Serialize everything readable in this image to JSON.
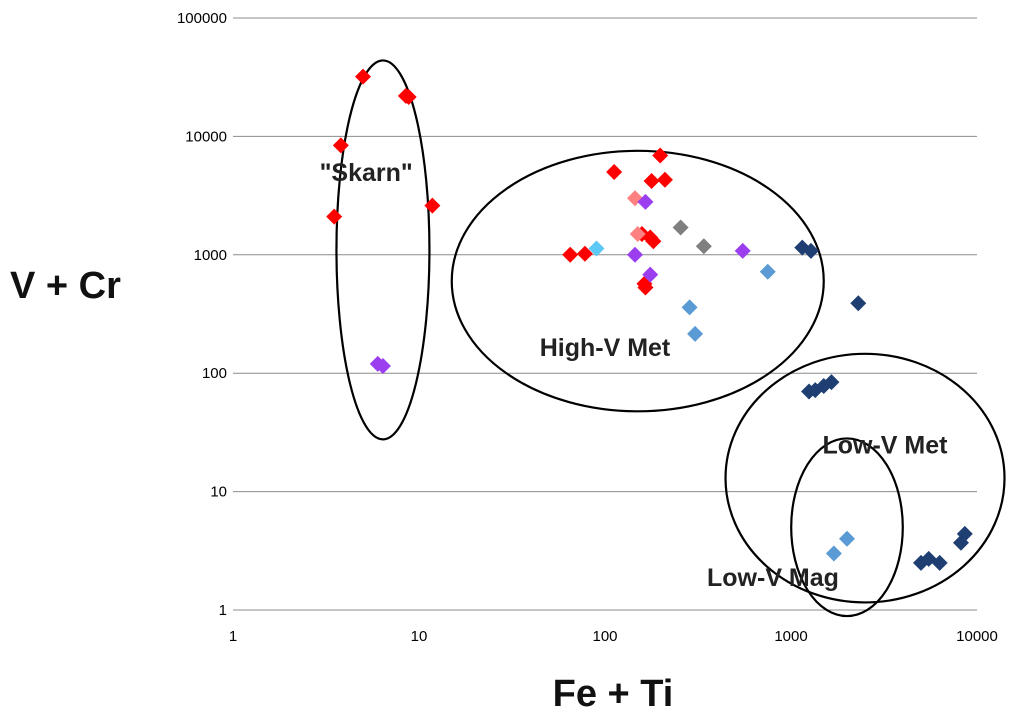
{
  "chart_data": {
    "type": "scatter",
    "xscale": "log",
    "yscale": "log",
    "xlabel": "Fe + Ti",
    "ylabel": "V + Cr",
    "xlim": [
      1,
      10000
    ],
    "ylim": [
      1,
      100000
    ],
    "x_ticks": [
      "1",
      "10",
      "100",
      "1000",
      "10000"
    ],
    "y_ticks": [
      "1",
      "10",
      "100",
      "1000",
      "10000",
      "100000"
    ],
    "grid": "horizontal",
    "colors": {
      "red": "#ff0000",
      "pink": "#ff8080",
      "purple": "#9b3ef0",
      "gray": "#7f7f7f",
      "cyan": "#5bc8f5",
      "lightblue": "#5b9bd5",
      "navy": "#1f3f73"
    },
    "series": [
      {
        "name": "red",
        "color": "#ff0000",
        "points": [
          [
            3.5,
            2100
          ],
          [
            3.8,
            8400
          ],
          [
            5,
            32000
          ],
          [
            8.5,
            22000
          ],
          [
            8.8,
            21500
          ],
          [
            11.8,
            2600
          ],
          [
            65,
            1000
          ],
          [
            78,
            1020
          ],
          [
            112,
            5000
          ],
          [
            158,
            1500
          ],
          [
            163,
            570
          ],
          [
            165,
            530
          ],
          [
            175,
            1400
          ],
          [
            178,
            4200
          ],
          [
            182,
            1300
          ],
          [
            198,
            6900
          ],
          [
            210,
            4300
          ]
        ]
      },
      {
        "name": "pink",
        "color": "#ff8080",
        "points": [
          [
            145,
            3000
          ],
          [
            150,
            1500
          ]
        ]
      },
      {
        "name": "purple",
        "color": "#9b3ef0",
        "points": [
          [
            6,
            120
          ],
          [
            6.4,
            115
          ],
          [
            145,
            1000
          ],
          [
            165,
            2800
          ],
          [
            175,
            680
          ],
          [
            550,
            1080
          ]
        ]
      },
      {
        "name": "gray",
        "color": "#7f7f7f",
        "points": [
          [
            255,
            1700
          ],
          [
            340,
            1180
          ]
        ]
      },
      {
        "name": "cyan",
        "color": "#5bc8f5",
        "points": [
          [
            90,
            1130
          ]
        ]
      },
      {
        "name": "lightblue",
        "color": "#5b9bd5",
        "points": [
          [
            285,
            360
          ],
          [
            305,
            215
          ],
          [
            750,
            720
          ],
          [
            1700,
            3
          ],
          [
            2000,
            4
          ]
        ]
      },
      {
        "name": "navy",
        "color": "#1f3f73",
        "points": [
          [
            1150,
            1150
          ],
          [
            1280,
            1080
          ],
          [
            1250,
            70
          ],
          [
            1350,
            72
          ],
          [
            1500,
            78
          ],
          [
            1650,
            84
          ],
          [
            2300,
            390
          ],
          [
            5000,
            2.5
          ],
          [
            5500,
            2.7
          ],
          [
            6300,
            2.5
          ],
          [
            8200,
            3.7
          ],
          [
            8600,
            4.4
          ]
        ]
      }
    ],
    "annotations": [
      {
        "text": "\"Skarn\"",
        "x": 5.2,
        "y": 4200
      },
      {
        "text": "High-V Met",
        "x": 100,
        "y": 140
      },
      {
        "text": "Low-V Met",
        "x": 3200,
        "y": 21
      },
      {
        "text": "Low-V Mag",
        "x": 800,
        "y": 1.6
      }
    ],
    "ellipses": [
      {
        "label": "\"Skarn\"",
        "cx": 6.4,
        "cy": 1100,
        "rx_dex": 0.25,
        "ry_dex": 1.6
      },
      {
        "label": "High-V Met",
        "cx": 150,
        "cy": 600,
        "rx_dex": 1.0,
        "ry_dex": 1.1
      },
      {
        "label": "Low-V Met",
        "cx": 2500,
        "cy": 13,
        "rx_dex": 0.75,
        "ry_dex": 1.05
      },
      {
        "label": "Low-V Mag",
        "cx": 2000,
        "cy": 5,
        "rx_dex": 0.3,
        "ry_dex": 0.75
      }
    ]
  }
}
